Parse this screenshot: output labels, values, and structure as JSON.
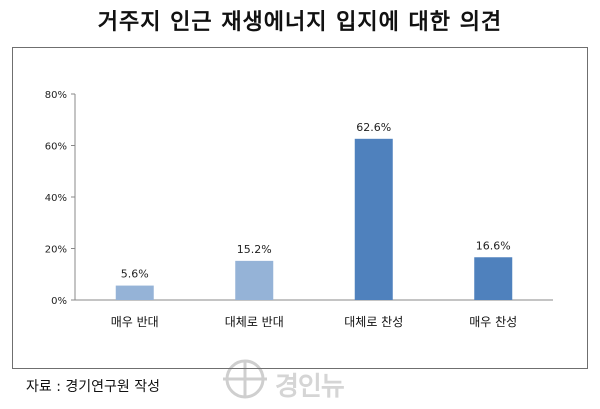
{
  "title": "거주지 인근 재생에너지 입지에 대한 의견",
  "source": "자료 : 경기연구원 작성",
  "watermark": {
    "name": "경인뉴",
    "tagline": ""
  },
  "colors": {
    "light_bar": "#95b3d7",
    "dark_bar": "#4f81bd",
    "axis": "#888888"
  },
  "chart_data": {
    "type": "bar",
    "title": "",
    "categories": [
      "매우 반대",
      "대체로 반대",
      "대체로 찬성",
      "매우 찬성"
    ],
    "values": [
      5.6,
      15.2,
      62.6,
      16.6
    ],
    "value_labels": [
      "5.6%",
      "15.2%",
      "62.6%",
      "16.6%"
    ],
    "bar_shades": [
      "light",
      "light",
      "dark",
      "dark"
    ],
    "y_ticks": [
      "0%",
      "20%",
      "40%",
      "60%",
      "80%"
    ],
    "y_tick_values": [
      0,
      20,
      40,
      60,
      80
    ],
    "ylim": [
      0,
      80
    ],
    "xlabel": "",
    "ylabel": "",
    "grid": false,
    "legend": "none"
  }
}
